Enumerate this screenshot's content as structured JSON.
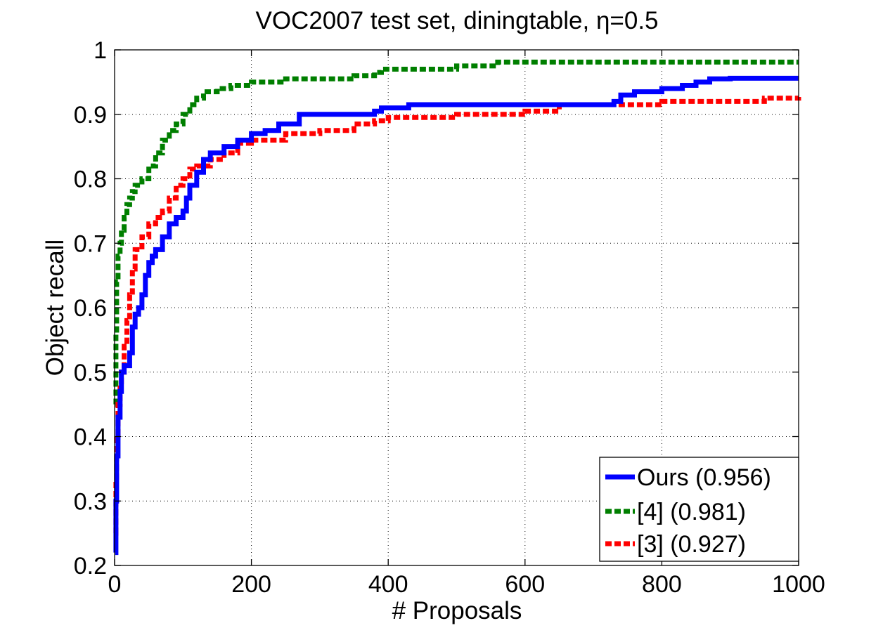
{
  "chart_data": {
    "type": "line",
    "title": "VOC2007 test set, diningtable, η=0.5",
    "xlabel": "# Proposals",
    "ylabel": "Object recall",
    "xlim": [
      0,
      1000
    ],
    "ylim": [
      0.2,
      1
    ],
    "xticks": [
      0,
      200,
      400,
      600,
      800,
      1000
    ],
    "yticks": [
      0.2,
      0.3,
      0.4,
      0.5,
      0.6,
      0.7,
      0.8,
      0.9,
      1
    ],
    "xtick_labels": [
      "0",
      "200",
      "400",
      "600",
      "800",
      "1000"
    ],
    "ytick_labels": [
      "0.2",
      "0.3",
      "0.4",
      "0.5",
      "0.6",
      "0.7",
      "0.8",
      "0.9",
      "1"
    ],
    "grid": true,
    "legend_position": "bottom-right",
    "series": [
      {
        "name": "Ours (0.956)",
        "color": "#0000ff",
        "style": "solid",
        "x": [
          1,
          2,
          3,
          5,
          8,
          10,
          14,
          18,
          22,
          26,
          30,
          35,
          40,
          45,
          50,
          55,
          60,
          70,
          80,
          90,
          100,
          105,
          110,
          120,
          130,
          140,
          150,
          160,
          170,
          180,
          200,
          220,
          240,
          260,
          270,
          300,
          350,
          380,
          390,
          430,
          450,
          500,
          550,
          600,
          650,
          700,
          730,
          740,
          760,
          800,
          830,
          850,
          870,
          900,
          950,
          1000
        ],
        "y": [
          0.22,
          0.3,
          0.37,
          0.43,
          0.47,
          0.5,
          0.51,
          0.51,
          0.53,
          0.57,
          0.59,
          0.6,
          0.62,
          0.65,
          0.67,
          0.68,
          0.69,
          0.71,
          0.73,
          0.74,
          0.75,
          0.77,
          0.79,
          0.81,
          0.83,
          0.84,
          0.84,
          0.85,
          0.85,
          0.86,
          0.87,
          0.875,
          0.885,
          0.885,
          0.9,
          0.9,
          0.9,
          0.905,
          0.91,
          0.915,
          0.915,
          0.915,
          0.915,
          0.915,
          0.915,
          0.915,
          0.92,
          0.93,
          0.935,
          0.94,
          0.945,
          0.95,
          0.955,
          0.956,
          0.956,
          0.956
        ]
      },
      {
        "name": "[4] (0.981)",
        "color": "#007f00",
        "style": "dashed",
        "x": [
          1,
          2,
          3,
          5,
          8,
          10,
          14,
          18,
          22,
          26,
          30,
          40,
          50,
          60,
          70,
          80,
          90,
          100,
          110,
          120,
          130,
          150,
          170,
          200,
          250,
          300,
          350,
          380,
          390,
          420,
          480,
          500,
          560,
          600,
          700,
          800,
          900,
          1000
        ],
        "y": [
          0.45,
          0.56,
          0.64,
          0.68,
          0.7,
          0.72,
          0.74,
          0.76,
          0.77,
          0.78,
          0.79,
          0.8,
          0.82,
          0.84,
          0.86,
          0.875,
          0.885,
          0.9,
          0.915,
          0.925,
          0.935,
          0.94,
          0.945,
          0.95,
          0.955,
          0.955,
          0.96,
          0.965,
          0.97,
          0.97,
          0.97,
          0.975,
          0.981,
          0.981,
          0.981,
          0.981,
          0.981,
          0.981
        ]
      },
      {
        "name": "[3] (0.927)",
        "color": "#ff0000",
        "style": "dashed",
        "x": [
          1,
          2,
          3,
          5,
          8,
          10,
          14,
          18,
          22,
          26,
          30,
          40,
          50,
          60,
          70,
          80,
          90,
          100,
          110,
          120,
          140,
          160,
          180,
          200,
          250,
          300,
          350,
          380,
          400,
          500,
          600,
          650,
          700,
          750,
          800,
          850,
          900,
          950,
          1000
        ],
        "y": [
          0.25,
          0.33,
          0.4,
          0.45,
          0.48,
          0.5,
          0.54,
          0.58,
          0.62,
          0.66,
          0.69,
          0.71,
          0.73,
          0.74,
          0.75,
          0.77,
          0.79,
          0.8,
          0.815,
          0.82,
          0.83,
          0.84,
          0.855,
          0.86,
          0.87,
          0.875,
          0.885,
          0.89,
          0.895,
          0.9,
          0.905,
          0.915,
          0.915,
          0.915,
          0.92,
          0.92,
          0.92,
          0.925,
          0.927
        ]
      }
    ]
  }
}
